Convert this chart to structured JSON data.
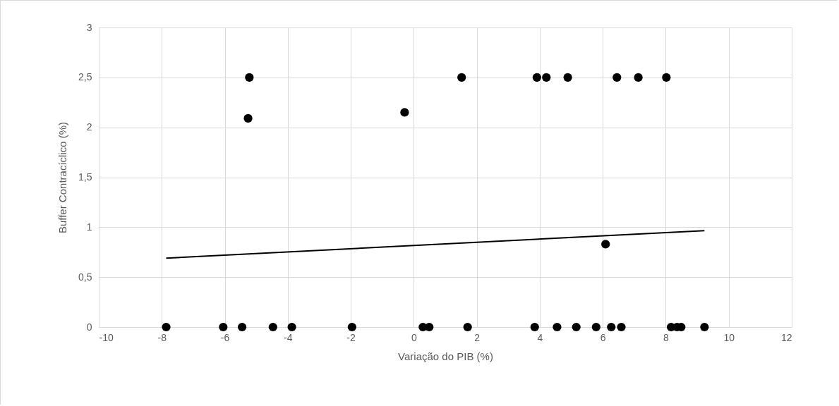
{
  "chart_data": {
    "type": "scatter",
    "xlabel": "Variação do PIB (%)",
    "ylabel": "Buffer Contracíclico (%)",
    "xlim": [
      -10,
      12
    ],
    "xticks": [
      -10,
      -8,
      -6,
      -4,
      -2,
      0,
      2,
      4,
      6,
      8,
      10,
      12
    ],
    "ylim": [
      0,
      3
    ],
    "yticks": [
      0,
      {
        "value": 0.5,
        "label": "0,5"
      },
      1,
      {
        "value": 1.5,
        "label": "1,5"
      },
      2,
      {
        "value": 2.5,
        "label": "2,5"
      },
      3
    ],
    "grid": true,
    "series": [
      {
        "marker": "circle",
        "color": "#000000",
        "x": [
          -7.86,
          -6.05,
          -5.45,
          -4.47,
          -3.87,
          -1.96,
          0.29,
          0.49,
          1.71,
          3.84,
          4.55,
          5.16,
          5.79,
          6.27,
          6.59,
          8.17,
          8.36,
          8.49,
          9.23,
          6.09,
          -5.22,
          -5.26,
          -0.29,
          1.52,
          3.91,
          4.21,
          4.89,
          6.45,
          7.13,
          8.02
        ],
        "values": [
          0,
          0,
          0,
          0,
          0,
          0,
          0,
          0,
          0,
          0,
          0,
          0,
          0,
          0,
          0,
          0,
          0,
          0,
          0,
          0.83,
          2.5,
          2.09,
          2.15,
          2.5,
          2.5,
          2.5,
          2.5,
          2.5,
          2.5,
          2.5
        ]
      },
      {
        "type": "line",
        "color": "#000000",
        "x": [
          -7.86,
          9.23
        ],
        "values": [
          0.69,
          0.965
        ]
      }
    ]
  }
}
